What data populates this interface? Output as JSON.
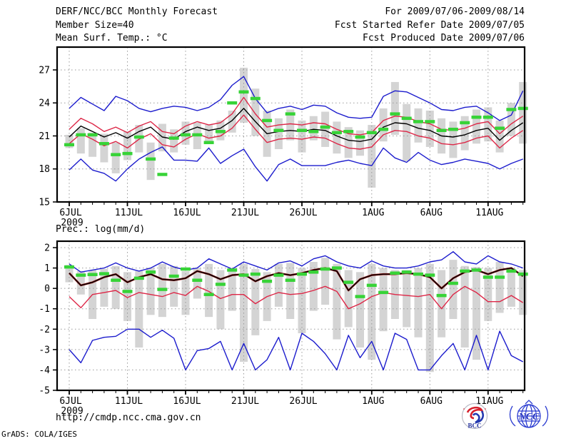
{
  "header": {
    "title": "DERF/NCC/BCC Monthly Forecast",
    "member_size": "Member Size=40",
    "period": "For 2009/07/06-2009/08/14",
    "refer_date": "Fcst Started Refer Date 2009/07/05",
    "produced_date": "Fcst Produced Date 2009/07/06"
  },
  "footer": {
    "url": "http://cmdp.ncc.cma.gov.cn",
    "grads_credit": "GrADS: COLA/IGES",
    "logos": [
      {
        "name": "bcc-logo",
        "label": "BCC"
      },
      {
        "name": "ncc-logo",
        "label": "NCC"
      }
    ]
  },
  "colors": {
    "blue": "#1c1ccd",
    "red": "#dd2747",
    "darkred": "#991111",
    "black": "#000000",
    "green": "#37d337",
    "bar": "#d4d4d4",
    "grid": "#9a9a9a",
    "frame": "#000000"
  },
  "chart_data": [
    {
      "type": "line",
      "title": "Mean Surf. Temp.: °C",
      "xlabel": "",
      "ylabel": "",
      "ylim": [
        15,
        29
      ],
      "yticks": [
        27,
        24,
        21,
        18,
        15
      ],
      "grid": true,
      "x_ticks": [
        {
          "day": 0,
          "label": "6JUL",
          "sublabel": "2009"
        },
        {
          "day": 5,
          "label": "11JUL"
        },
        {
          "day": 10,
          "label": "16JUL"
        },
        {
          "day": 15,
          "label": "21JUL"
        },
        {
          "day": 20,
          "label": "26JUL"
        },
        {
          "day": 26,
          "label": "1AUG"
        },
        {
          "day": 31,
          "label": "6AUG"
        },
        {
          "day": 36,
          "label": "11AUG"
        }
      ],
      "dates": [
        "6JUL",
        "7JUL",
        "8JUL",
        "9JUL",
        "10JUL",
        "11JUL",
        "12JUL",
        "13JUL",
        "14JUL",
        "15JUL",
        "16JUL",
        "17JUL",
        "18JUL",
        "19JUL",
        "20JUL",
        "21JUL",
        "22JUL",
        "23JUL",
        "24JUL",
        "25JUL",
        "26JUL",
        "27JUL",
        "28JUL",
        "29JUL",
        "30JUL",
        "31JUL",
        "1AUG",
        "2AUG",
        "3AUG",
        "4AUG",
        "5AUG",
        "6AUG",
        "7AUG",
        "8AUG",
        "9AUG",
        "10AUG",
        "11AUG",
        "12AUG",
        "13AUG",
        "14AUG"
      ],
      "series": [
        {
          "name": "blue-upper",
          "color_key": "blue",
          "values": [
            23.5,
            24.5,
            23.9,
            23.3,
            24.6,
            24.2,
            23.5,
            23.2,
            23.5,
            23.7,
            23.6,
            23.3,
            23.6,
            24.3,
            25.6,
            26.4,
            24.4,
            23.1,
            23.5,
            23.7,
            23.4,
            23.8,
            23.7,
            23.1,
            22.7,
            22.6,
            22.7,
            24.6,
            25.1,
            25.0,
            24.5,
            24.0,
            23.4,
            23.3,
            23.6,
            23.7,
            23.1,
            22.4,
            22.9,
            25.1
          ]
        },
        {
          "name": "red-upper",
          "color_key": "red",
          "values": [
            21.6,
            22.6,
            22.1,
            21.4,
            21.8,
            21.3,
            21.9,
            22.3,
            21.4,
            21.2,
            21.9,
            22.3,
            22.0,
            22.2,
            23.0,
            24.5,
            23.0,
            21.8,
            22.0,
            22.1,
            22.0,
            22.2,
            22.1,
            21.6,
            21.2,
            21.1,
            21.3,
            22.4,
            22.8,
            22.7,
            22.3,
            22.1,
            21.6,
            21.5,
            21.7,
            22.1,
            22.3,
            21.2,
            22.1,
            22.8
          ]
        },
        {
          "name": "black-mean",
          "color_key": "black",
          "values": [
            20.9,
            21.9,
            21.4,
            20.9,
            21.3,
            20.8,
            21.4,
            21.8,
            20.9,
            20.7,
            21.4,
            21.8,
            21.5,
            21.7,
            22.4,
            23.5,
            22.3,
            21.2,
            21.4,
            21.5,
            21.4,
            21.6,
            21.5,
            21.0,
            20.6,
            20.5,
            20.7,
            21.8,
            22.2,
            22.1,
            21.7,
            21.5,
            21.0,
            20.9,
            21.1,
            21.5,
            21.7,
            20.6,
            21.5,
            22.2
          ]
        },
        {
          "name": "red-lower",
          "color_key": "red",
          "values": [
            20.3,
            21.2,
            20.7,
            20.1,
            20.5,
            19.9,
            20.7,
            21.2,
            20.2,
            20.0,
            20.7,
            21.2,
            20.8,
            21.0,
            21.7,
            22.9,
            21.6,
            20.4,
            20.7,
            20.8,
            20.7,
            20.9,
            20.8,
            20.3,
            19.9,
            19.8,
            20.0,
            21.1,
            21.5,
            21.4,
            21.0,
            20.8,
            20.3,
            20.2,
            20.4,
            20.8,
            21.0,
            19.9,
            20.8,
            21.5
          ]
        },
        {
          "name": "blue-lower",
          "color_key": "blue",
          "values": [
            17.9,
            18.9,
            17.9,
            17.6,
            16.9,
            18.0,
            18.9,
            19.5,
            20.0,
            18.8,
            18.8,
            18.7,
            19.9,
            18.5,
            19.2,
            19.8,
            18.2,
            16.9,
            18.4,
            18.9,
            18.3,
            18.3,
            18.3,
            18.6,
            18.8,
            18.5,
            18.3,
            19.9,
            19.0,
            18.6,
            19.5,
            18.8,
            18.4,
            18.6,
            18.9,
            18.7,
            18.5,
            18.0,
            18.5,
            18.9
          ]
        }
      ],
      "green_dashes": {
        "name": "green-dashes",
        "color_key": "green",
        "values": [
          20.2,
          21.1,
          21.1,
          20.3,
          19.3,
          19.4,
          20.9,
          18.9,
          17.5,
          20.8,
          21.1,
          21.1,
          20.4,
          21.4,
          24.0,
          25.0,
          24.4,
          22.4,
          21.5,
          23.0,
          21.5,
          21.4,
          21.8,
          21.3,
          21.4,
          20.9,
          21.3,
          21.6,
          23.0,
          22.6,
          22.3,
          22.3,
          21.5,
          21.6,
          22.2,
          22.7,
          22.7,
          21.7,
          23.4,
          23.5
        ]
      },
      "gray_bars": {
        "name": "gray-bars",
        "color_key": "bar",
        "lo": [
          19.9,
          19.4,
          19.1,
          18.6,
          17.6,
          18.8,
          19.5,
          17.0,
          19.6,
          19.5,
          20.2,
          19.8,
          20.3,
          20.6,
          21.3,
          22.2,
          21.0,
          19.1,
          19.8,
          20.6,
          19.5,
          20.6,
          20.0,
          19.4,
          19.0,
          19.2,
          16.3,
          20.5,
          21.1,
          18.7,
          20.4,
          20.0,
          19.4,
          19.0,
          19.7,
          20.3,
          20.5,
          19.5,
          21.0,
          20.3
        ],
        "hi": [
          21.1,
          21.7,
          21.3,
          21.2,
          20.4,
          21.4,
          22.0,
          20.4,
          22.1,
          21.6,
          22.3,
          22.2,
          22.0,
          22.4,
          23.3,
          27.2,
          25.3,
          23.3,
          22.6,
          23.4,
          22.4,
          22.8,
          23.2,
          22.3,
          21.8,
          21.5,
          22.0,
          23.5,
          25.9,
          23.9,
          23.5,
          23.3,
          22.6,
          22.3,
          22.8,
          23.4,
          23.6,
          22.4,
          24.0,
          25.9
        ]
      }
    },
    {
      "type": "line",
      "title": "Prec.: log(mm/d)",
      "xlabel": "",
      "ylabel": "",
      "ylim": [
        -5,
        2.3
      ],
      "yticks": [
        2,
        1,
        0,
        -1,
        -2,
        -3,
        -4,
        -5
      ],
      "grid": true,
      "x_ticks": [
        {
          "day": 0,
          "label": "6JUL",
          "sublabel": "2009"
        },
        {
          "day": 5,
          "label": "11JUL"
        },
        {
          "day": 10,
          "label": "16JUL"
        },
        {
          "day": 15,
          "label": "21JUL"
        },
        {
          "day": 20,
          "label": "26JUL"
        },
        {
          "day": 26,
          "label": "1AUG"
        },
        {
          "day": 31,
          "label": "6AUG"
        },
        {
          "day": 36,
          "label": "11AUG"
        }
      ],
      "dates": [
        "6JUL",
        "7JUL",
        "8JUL",
        "9JUL",
        "10JUL",
        "11JUL",
        "12JUL",
        "13JUL",
        "14JUL",
        "15JUL",
        "16JUL",
        "17JUL",
        "18JUL",
        "19JUL",
        "20JUL",
        "21JUL",
        "22JUL",
        "23JUL",
        "24JUL",
        "25JUL",
        "26JUL",
        "27JUL",
        "28JUL",
        "29JUL",
        "30JUL",
        "31JUL",
        "1AUG",
        "2AUG",
        "3AUG",
        "4AUG",
        "5AUG",
        "6AUG",
        "7AUG",
        "8AUG",
        "9AUG",
        "10AUG",
        "11AUG",
        "12AUG",
        "13AUG",
        "14AUG"
      ],
      "series": [
        {
          "name": "blue-upper",
          "color_key": "blue",
          "values": [
            1.2,
            0.8,
            0.9,
            1.0,
            1.25,
            1.0,
            0.85,
            1.0,
            1.3,
            1.05,
            0.9,
            1.0,
            1.45,
            1.2,
            0.95,
            1.3,
            1.1,
            0.9,
            1.25,
            1.35,
            1.1,
            1.45,
            1.6,
            1.3,
            1.1,
            1.0,
            1.35,
            1.1,
            1.0,
            1.0,
            1.1,
            1.3,
            1.4,
            1.8,
            1.3,
            1.2,
            1.6,
            1.3,
            1.2,
            1.0
          ]
        },
        {
          "name": "darkred-median",
          "color_key": "darkred",
          "values": [
            0.75,
            0.15,
            0.3,
            0.55,
            0.7,
            0.3,
            0.55,
            0.7,
            0.45,
            0.4,
            0.5,
            0.85,
            0.7,
            0.45,
            0.65,
            0.7,
            0.35,
            0.6,
            0.75,
            0.65,
            0.75,
            0.9,
            1.0,
            0.85,
            -0.1,
            0.45,
            0.65,
            0.7,
            0.7,
            0.75,
            0.7,
            0.55,
            0.0,
            0.5,
            0.8,
            0.9,
            0.7,
            0.9,
            1.0,
            0.6
          ]
        },
        {
          "name": "black-mean",
          "color_key": "black",
          "values": [
            0.75,
            0.15,
            0.3,
            0.55,
            0.7,
            0.3,
            0.55,
            0.7,
            0.45,
            0.4,
            0.5,
            0.85,
            0.7,
            0.45,
            0.65,
            0.7,
            0.35,
            0.6,
            0.75,
            0.65,
            0.75,
            0.9,
            1.0,
            0.85,
            -0.1,
            0.45,
            0.65,
            0.7,
            0.7,
            0.75,
            0.7,
            0.55,
            0.0,
            0.5,
            0.8,
            0.9,
            0.7,
            0.9,
            1.0,
            0.6
          ]
        },
        {
          "name": "red-lower",
          "color_key": "red",
          "values": [
            -0.4,
            -0.95,
            -0.3,
            -0.2,
            -0.1,
            -0.45,
            -0.2,
            -0.3,
            -0.4,
            -0.2,
            -0.35,
            0.1,
            -0.15,
            -0.5,
            -0.3,
            -0.3,
            -0.75,
            -0.4,
            -0.2,
            -0.3,
            -0.25,
            -0.1,
            0.1,
            -0.15,
            -1.0,
            -0.75,
            -0.4,
            -0.2,
            -0.3,
            -0.35,
            -0.4,
            -0.3,
            -1.0,
            -0.3,
            0.1,
            -0.2,
            -0.65,
            -0.65,
            -0.35,
            -0.7
          ]
        },
        {
          "name": "blue-lower",
          "color_key": "blue",
          "values": [
            -3.0,
            -3.65,
            -2.55,
            -2.4,
            -2.35,
            -2.0,
            -2.0,
            -2.4,
            -2.05,
            -2.45,
            -4.0,
            -3.05,
            -2.95,
            -2.6,
            -4.0,
            -2.7,
            -4.0,
            -3.5,
            -2.4,
            -4.0,
            -2.2,
            -2.6,
            -3.2,
            -4.0,
            -2.3,
            -3.4,
            -2.6,
            -4.0,
            -2.2,
            -2.5,
            -4.0,
            -4.0,
            -3.3,
            -2.7,
            -4.0,
            -2.3,
            -4.0,
            -2.1,
            -3.3,
            -3.6
          ]
        }
      ],
      "green_dashes": {
        "name": "green-dashes",
        "color_key": "green",
        "values": [
          1.05,
          0.65,
          0.68,
          0.72,
          0.4,
          -0.15,
          0.5,
          0.8,
          -0.05,
          0.6,
          0.95,
          0.4,
          -0.3,
          0.2,
          0.9,
          0.65,
          0.7,
          0.35,
          0.65,
          0.4,
          0.7,
          0.8,
          0.95,
          1.0,
          0.3,
          -0.4,
          0.15,
          -0.2,
          0.75,
          0.8,
          0.7,
          0.65,
          -0.35,
          0.25,
          0.85,
          0.9,
          0.55,
          0.55,
          0.85,
          0.7
        ]
      },
      "gray_bars": {
        "name": "gray-bars",
        "color_key": "bar",
        "lo": [
          0.3,
          -0.3,
          -1.5,
          -0.9,
          -1.0,
          -1.6,
          -2.9,
          -1.3,
          -1.4,
          -0.9,
          -1.3,
          -0.5,
          -1.4,
          -2.0,
          -1.1,
          -3.6,
          -2.3,
          -1.6,
          -0.9,
          -1.5,
          -2.2,
          -1.1,
          -0.8,
          -2.5,
          -1.9,
          -2.9,
          -3.5,
          -2.1,
          -1.5,
          -1.9,
          -2.4,
          -4.1,
          -2.4,
          -1.5,
          -2.9,
          -3.5,
          -1.6,
          -1.2,
          -0.9,
          -1.3
        ],
        "hi": [
          1.15,
          0.85,
          0.9,
          0.95,
          1.1,
          0.8,
          0.85,
          1.0,
          1.2,
          1.1,
          0.85,
          1.0,
          1.2,
          0.9,
          0.9,
          1.2,
          0.95,
          0.8,
          1.2,
          1.25,
          1.0,
          1.3,
          1.5,
          1.2,
          0.9,
          0.8,
          1.2,
          1.0,
          0.9,
          0.9,
          1.0,
          1.2,
          0.9,
          1.4,
          1.1,
          1.05,
          1.0,
          1.3,
          1.0,
          0.9
        ]
      }
    }
  ]
}
